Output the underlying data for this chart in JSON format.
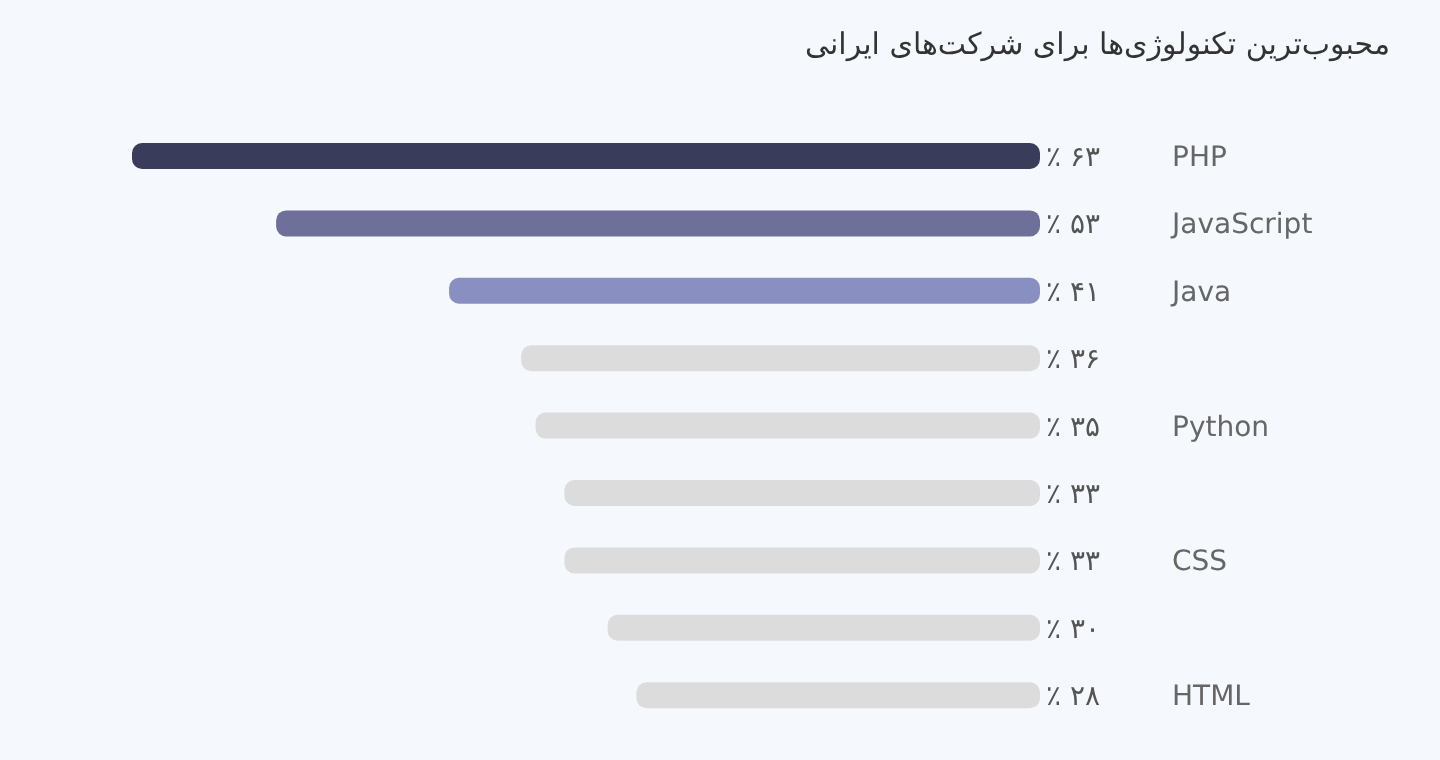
{
  "chart_data": {
    "type": "bar",
    "orientation": "horizontal",
    "title": "محبوب‌ترین تکنولوژی‌ها برای شرکت‌های ایرانی",
    "categories": [
      "PHP",
      "JavaScript",
      "Java",
      null,
      "Python",
      null,
      "CSS",
      null,
      "HTML"
    ],
    "values": [
      63,
      53,
      41,
      36,
      35,
      33,
      33,
      30,
      28
    ],
    "colors": [
      "#3a3c5c",
      "#6e7099",
      "#8a8fc2",
      "#dcdcdc",
      "#dcdcdc",
      "#dcdcdc",
      "#dcdcdc",
      "#dcdcdc",
      "#dcdcdc"
    ],
    "value_labels": [
      "۶۳ ٪",
      "۵۳ ٪",
      "۴۱ ٪",
      "۳۶ ٪",
      "۳۵ ٪",
      "۳۳ ٪",
      "۳۳ ٪",
      "۳۰ ٪",
      "۲۸ ٪"
    ]
  }
}
